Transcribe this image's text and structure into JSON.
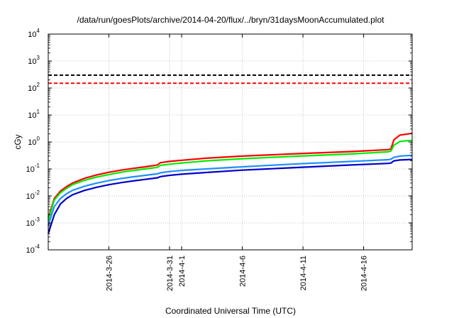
{
  "chart_data": {
    "type": "line",
    "title": "/data/run/goesPlots/archive/2014-04-20/flux/../bryn/31daysMoonAccumulated.plot",
    "xlabel": "Coordinated Universal Time (UTC)",
    "ylabel": "cGy",
    "y_scale": "log",
    "ylim": [
      0.0001,
      10000
    ],
    "xlim": [
      "2014-03-21",
      "2014-04-20"
    ],
    "grid": true,
    "y_ticks": [
      {
        "base": "10",
        "exp": "-4",
        "value": 0.0001
      },
      {
        "base": "10",
        "exp": "-3",
        "value": 0.001
      },
      {
        "base": "10",
        "exp": "-2",
        "value": 0.01
      },
      {
        "base": "10",
        "exp": "-1",
        "value": 0.1
      },
      {
        "base": "10",
        "exp": "0",
        "value": 1
      },
      {
        "base": "10",
        "exp": "1",
        "value": 10
      },
      {
        "base": "10",
        "exp": "2",
        "value": 100
      },
      {
        "base": "10",
        "exp": "3",
        "value": 1000
      },
      {
        "base": "10",
        "exp": "4",
        "value": 10000
      }
    ],
    "x_ticks": [
      {
        "date": "2014-03-26",
        "label": "2014-3-26"
      },
      {
        "date": "2014-03-31",
        "label": "2014-3-31"
      },
      {
        "date": "2014-04-01",
        "label": "2014-4-1"
      },
      {
        "date": "2014-04-06",
        "label": "2014-4-6"
      },
      {
        "date": "2014-04-11",
        "label": "2014-4-11"
      },
      {
        "date": "2014-04-16",
        "label": "2014-4-16"
      }
    ],
    "thresholds": [
      {
        "value": 300,
        "color": "#000000",
        "style": "dashed"
      },
      {
        "value": 150,
        "color": "#ff0000",
        "style": "dashed"
      }
    ],
    "series": [
      {
        "color": "#ff0000",
        "points": [
          [
            "2014-03-21",
            0.0015
          ],
          [
            "2014-03-21T12:00",
            0.008
          ],
          [
            "2014-03-22",
            0.015
          ],
          [
            "2014-03-22T12:00",
            0.022
          ],
          [
            "2014-03-23",
            0.03
          ],
          [
            "2014-03-24",
            0.045
          ],
          [
            "2014-03-25",
            0.06
          ],
          [
            "2014-03-26",
            0.075
          ],
          [
            "2014-03-27",
            0.09
          ],
          [
            "2014-03-28",
            0.105
          ],
          [
            "2014-03-29",
            0.12
          ],
          [
            "2014-03-30",
            0.14
          ],
          [
            "2014-03-30T06:00",
            0.17
          ],
          [
            "2014-03-31",
            0.19
          ],
          [
            "2014-04-01",
            0.21
          ],
          [
            "2014-04-03",
            0.25
          ],
          [
            "2014-04-06",
            0.3
          ],
          [
            "2014-04-10",
            0.36
          ],
          [
            "2014-04-15",
            0.44
          ],
          [
            "2014-04-18",
            0.52
          ],
          [
            "2014-04-18T06:00",
            0.55
          ],
          [
            "2014-04-18T12:00",
            1.2
          ],
          [
            "2014-04-19",
            1.8
          ],
          [
            "2014-04-20",
            2.1
          ]
        ]
      },
      {
        "color": "#00ee00",
        "points": [
          [
            "2014-03-21",
            0.0012
          ],
          [
            "2014-03-21T12:00",
            0.007
          ],
          [
            "2014-03-22",
            0.013
          ],
          [
            "2014-03-22T12:00",
            0.019
          ],
          [
            "2014-03-23",
            0.026
          ],
          [
            "2014-03-24",
            0.038
          ],
          [
            "2014-03-25",
            0.05
          ],
          [
            "2014-03-26",
            0.062
          ],
          [
            "2014-03-27",
            0.075
          ],
          [
            "2014-03-28",
            0.088
          ],
          [
            "2014-03-29",
            0.1
          ],
          [
            "2014-03-30",
            0.115
          ],
          [
            "2014-03-30T06:00",
            0.135
          ],
          [
            "2014-03-31",
            0.15
          ],
          [
            "2014-04-01",
            0.165
          ],
          [
            "2014-04-03",
            0.2
          ],
          [
            "2014-04-06",
            0.24
          ],
          [
            "2014-04-10",
            0.29
          ],
          [
            "2014-04-15",
            0.36
          ],
          [
            "2014-04-18",
            0.43
          ],
          [
            "2014-04-18T06:00",
            0.46
          ],
          [
            "2014-04-18T12:00",
            0.75
          ],
          [
            "2014-04-19",
            1.05
          ],
          [
            "2014-04-20",
            1.15
          ]
        ]
      },
      {
        "color": "#1e90ff",
        "points": [
          [
            "2014-03-21",
            0.0008
          ],
          [
            "2014-03-21T12:00",
            0.004
          ],
          [
            "2014-03-22",
            0.008
          ],
          [
            "2014-03-22T12:00",
            0.012
          ],
          [
            "2014-03-23",
            0.016
          ],
          [
            "2014-03-24",
            0.023
          ],
          [
            "2014-03-25",
            0.03
          ],
          [
            "2014-03-26",
            0.037
          ],
          [
            "2014-03-27",
            0.044
          ],
          [
            "2014-03-28",
            0.051
          ],
          [
            "2014-03-29",
            0.058
          ],
          [
            "2014-03-30",
            0.066
          ],
          [
            "2014-03-30T06:00",
            0.072
          ],
          [
            "2014-03-31",
            0.08
          ],
          [
            "2014-04-01",
            0.088
          ],
          [
            "2014-04-03",
            0.1
          ],
          [
            "2014-04-06",
            0.12
          ],
          [
            "2014-04-10",
            0.15
          ],
          [
            "2014-04-15",
            0.19
          ],
          [
            "2014-04-18",
            0.22
          ],
          [
            "2014-04-18T06:00",
            0.23
          ],
          [
            "2014-04-18T12:00",
            0.27
          ],
          [
            "2014-04-19",
            0.3
          ],
          [
            "2014-04-20",
            0.32
          ]
        ]
      },
      {
        "color": "#0000cc",
        "points": [
          [
            "2014-03-21",
            0.0004
          ],
          [
            "2014-03-21T12:00",
            0.002
          ],
          [
            "2014-03-22",
            0.005
          ],
          [
            "2014-03-22T12:00",
            0.008
          ],
          [
            "2014-03-23",
            0.011
          ],
          [
            "2014-03-24",
            0.016
          ],
          [
            "2014-03-25",
            0.021
          ],
          [
            "2014-03-26",
            0.026
          ],
          [
            "2014-03-27",
            0.031
          ],
          [
            "2014-03-28",
            0.036
          ],
          [
            "2014-03-29",
            0.041
          ],
          [
            "2014-03-30",
            0.047
          ],
          [
            "2014-03-30T06:00",
            0.052
          ],
          [
            "2014-03-31",
            0.058
          ],
          [
            "2014-04-01",
            0.064
          ],
          [
            "2014-04-03",
            0.074
          ],
          [
            "2014-04-06",
            0.09
          ],
          [
            "2014-04-10",
            0.11
          ],
          [
            "2014-04-15",
            0.14
          ],
          [
            "2014-04-18",
            0.16
          ],
          [
            "2014-04-18T06:00",
            0.165
          ],
          [
            "2014-04-18T12:00",
            0.2
          ],
          [
            "2014-04-19",
            0.215
          ],
          [
            "2014-04-20",
            0.225
          ]
        ]
      }
    ]
  }
}
